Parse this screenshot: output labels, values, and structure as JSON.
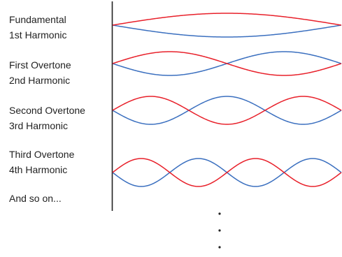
{
  "modes": [
    {
      "line1": "Fundamental",
      "line2": "1st Harmonic",
      "loops": 1
    },
    {
      "line1": "First Overtone",
      "line2": "2nd Harmonic",
      "loops": 2
    },
    {
      "line1": "Second Overtone",
      "line2": "3rd Harmonic",
      "loops": 3
    },
    {
      "line1": "Third Overtone",
      "line2": "4th Harmonic",
      "loops": 4
    }
  ],
  "continuation": "And so on...",
  "colors": {
    "wave_a": "#e8202a",
    "wave_b": "#3a6fbf",
    "axis": "#222222",
    "text": "#222222"
  }
}
